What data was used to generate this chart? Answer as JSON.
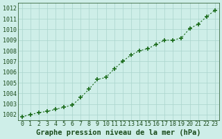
{
  "x": [
    0,
    1,
    2,
    3,
    4,
    5,
    6,
    7,
    8,
    9,
    10,
    11,
    12,
    13,
    14,
    15,
    16,
    17,
    18,
    19,
    20,
    21,
    22,
    23
  ],
  "y": [
    1001.8,
    1002.0,
    1002.2,
    1002.3,
    1002.5,
    1002.7,
    1002.9,
    1003.6,
    1004.4,
    1005.3,
    1005.5,
    1006.3,
    1007.0,
    1007.6,
    1008.0,
    1008.2,
    1008.6,
    1009.0,
    1009.0,
    1009.2,
    1010.1,
    1010.5,
    1011.2,
    1011.8
  ],
  "line_color": "#1a6b1a",
  "marker": "+",
  "marker_size": 4,
  "bg_color": "#ceeee8",
  "grid_color": "#aad4cc",
  "xlabel": "Graphe pression niveau de la mer (hPa)",
  "ylim": [
    1001.5,
    1012.5
  ],
  "yticks": [
    1002,
    1003,
    1004,
    1005,
    1006,
    1007,
    1008,
    1009,
    1010,
    1011,
    1012
  ],
  "xlim": [
    -0.5,
    23.5
  ],
  "xticks": [
    0,
    1,
    2,
    3,
    4,
    5,
    6,
    7,
    8,
    9,
    10,
    11,
    12,
    13,
    14,
    15,
    16,
    17,
    18,
    19,
    20,
    21,
    22,
    23
  ],
  "xlabel_color": "#1a4b1a",
  "tick_color": "#1a4b1a",
  "font_size_xlabel": 7.5,
  "font_size_ticks": 6.0,
  "linewidth": 0.8,
  "markerwidth": 1.2
}
